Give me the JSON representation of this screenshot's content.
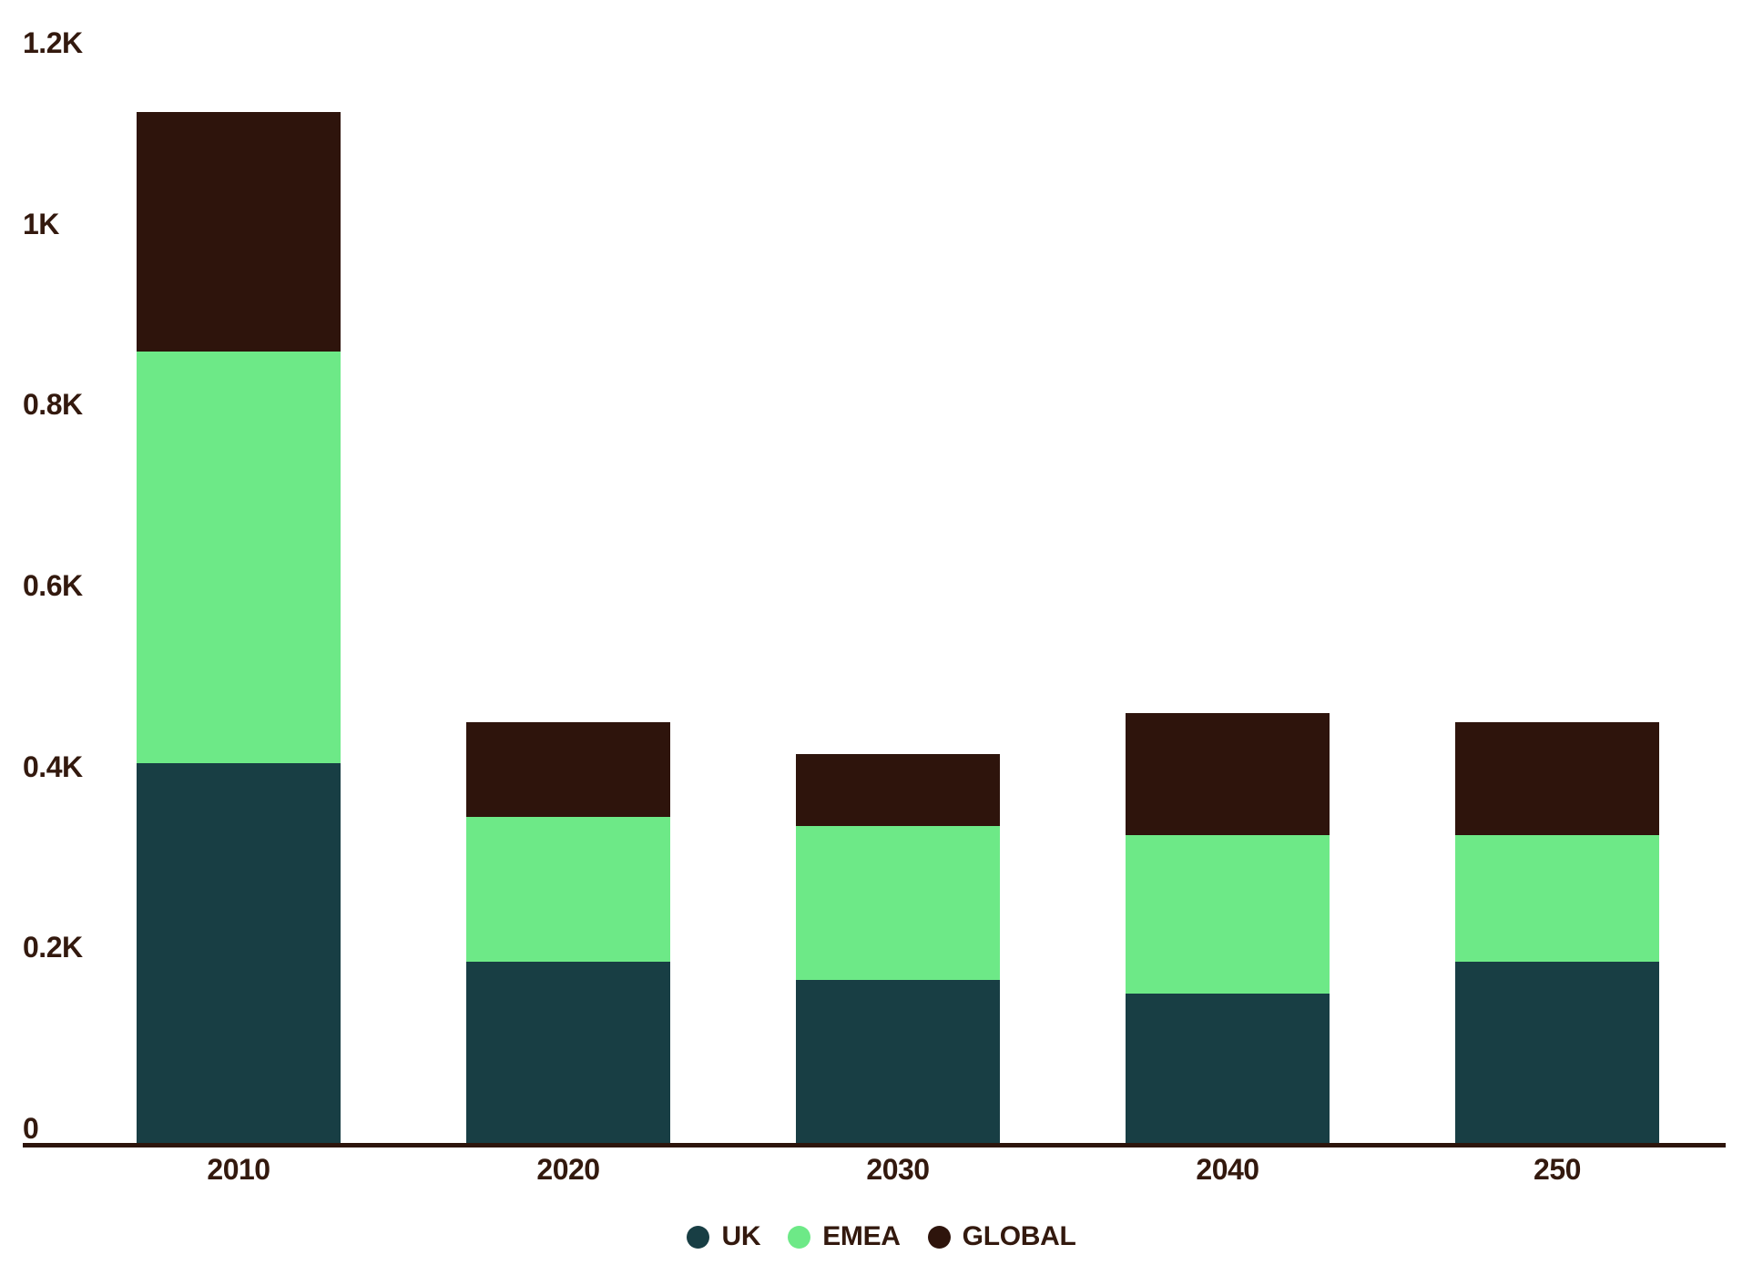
{
  "chart_data": {
    "type": "bar",
    "subtype": "stacked",
    "title": "",
    "categories": [
      "2010",
      "2020",
      "2030",
      "2040",
      "250"
    ],
    "series": [
      {
        "name": "UK",
        "color": "#183E44",
        "values": [
          420,
          200,
          180,
          165,
          200
        ]
      },
      {
        "name": "EMEA",
        "color": "#6DE987",
        "values": [
          455,
          160,
          170,
          175,
          140
        ]
      },
      {
        "name": "GLOBAL",
        "color": "#2E140C",
        "values": [
          265,
          105,
          80,
          135,
          125
        ]
      }
    ],
    "totals": [
      1140,
      465,
      430,
      475,
      465
    ],
    "y_axis": {
      "range": [
        0,
        1200
      ],
      "ticks": [
        {
          "value": 0,
          "label": "0"
        },
        {
          "value": 200,
          "label": "0.2K"
        },
        {
          "value": 400,
          "label": "0.4K"
        },
        {
          "value": 600,
          "label": "0.6K"
        },
        {
          "value": 800,
          "label": "0.8K"
        },
        {
          "value": 1000,
          "label": "1K"
        },
        {
          "value": 1200,
          "label": "1.2K"
        }
      ]
    },
    "grid": false,
    "legend": {
      "position": "bottom",
      "items": [
        {
          "label": "UK",
          "color": "#183E44"
        },
        {
          "label": "EMEA",
          "color": "#6DE987"
        },
        {
          "label": "GLOBAL",
          "color": "#2E140C"
        }
      ]
    }
  },
  "colors": {
    "background": "#FFFFFF",
    "axis_line": "#2D150C",
    "label_text": "#33190E"
  }
}
